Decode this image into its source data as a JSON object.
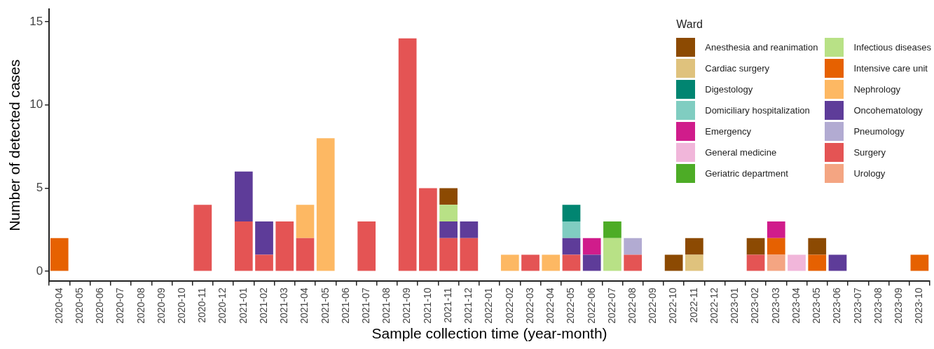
{
  "chart_data": {
    "type": "bar",
    "stacked": true,
    "xlabel": "Sample collection time (year-month)",
    "ylabel": "Number of detected cases",
    "legend_title": "Ward",
    "legend": "top right",
    "categories": [
      "2020-04",
      "2020-05",
      "2020-06",
      "2020-07",
      "2020-08",
      "2020-09",
      "2020-10",
      "2020-11",
      "2020-12",
      "2021-01",
      "2021-02",
      "2021-03",
      "2021-04",
      "2021-05",
      "2021-06",
      "2021-07",
      "2021-08",
      "2021-09",
      "2021-10",
      "2021-11",
      "2021-12",
      "2022-01",
      "2022-02",
      "2022-03",
      "2022-04",
      "2022-05",
      "2022-06",
      "2022-07",
      "2022-08",
      "2022-09",
      "2022-10",
      "2022-11",
      "2022-12",
      "2023-01",
      "2023-02",
      "2023-03",
      "2023-04",
      "2023-05",
      "2023-06",
      "2023-07",
      "2023-08",
      "2023-09",
      "2023-10"
    ],
    "ylim": [
      -0.6,
      15.75
    ],
    "yticks": [
      0,
      5,
      10,
      15
    ],
    "series": [
      {
        "name": "Urology",
        "color": "#f4a582",
        "values": [
          null,
          null,
          null,
          null,
          null,
          null,
          null,
          null,
          null,
          null,
          null,
          null,
          null,
          null,
          null,
          null,
          null,
          null,
          null,
          null,
          null,
          null,
          null,
          null,
          null,
          null,
          null,
          null,
          null,
          null,
          null,
          null,
          null,
          null,
          null,
          1,
          null,
          null,
          null,
          null,
          null,
          null,
          null
        ]
      },
      {
        "name": "Surgery",
        "color": "#e45454",
        "values": [
          null,
          null,
          null,
          null,
          null,
          null,
          null,
          4,
          null,
          3,
          1,
          3,
          2,
          null,
          null,
          3,
          null,
          14,
          5,
          2,
          2,
          null,
          null,
          1,
          null,
          1,
          null,
          null,
          1,
          null,
          null,
          null,
          null,
          null,
          1,
          null,
          null,
          null,
          null,
          null,
          null,
          null,
          null
        ]
      },
      {
        "name": "Pneumology",
        "color": "#b2abd2",
        "values": [
          null,
          null,
          null,
          null,
          null,
          null,
          null,
          null,
          null,
          null,
          null,
          null,
          null,
          null,
          null,
          null,
          null,
          null,
          null,
          null,
          null,
          null,
          null,
          null,
          null,
          null,
          null,
          null,
          1,
          null,
          null,
          null,
          null,
          null,
          null,
          null,
          null,
          null,
          null,
          null,
          null,
          null,
          null
        ]
      },
      {
        "name": "Oncohematology",
        "color": "#5e3c99",
        "values": [
          null,
          null,
          null,
          null,
          null,
          null,
          null,
          null,
          null,
          3,
          2,
          null,
          null,
          null,
          null,
          null,
          null,
          null,
          null,
          1,
          1,
          null,
          null,
          null,
          null,
          1,
          1,
          null,
          null,
          null,
          null,
          null,
          null,
          null,
          null,
          null,
          null,
          null,
          1,
          null,
          null,
          null,
          null
        ]
      },
      {
        "name": "Nephrology",
        "color": "#fdb863",
        "values": [
          null,
          null,
          null,
          null,
          null,
          null,
          null,
          null,
          null,
          null,
          null,
          null,
          2,
          8,
          null,
          null,
          null,
          null,
          null,
          null,
          null,
          null,
          1,
          null,
          1,
          null,
          null,
          null,
          null,
          null,
          null,
          null,
          null,
          null,
          null,
          null,
          null,
          null,
          null,
          null,
          null,
          null,
          null
        ]
      },
      {
        "name": "Intensive care unit",
        "color": "#e66101",
        "values": [
          2,
          null,
          null,
          null,
          null,
          null,
          null,
          null,
          null,
          null,
          null,
          null,
          null,
          null,
          null,
          null,
          null,
          null,
          null,
          null,
          null,
          null,
          null,
          null,
          null,
          null,
          null,
          null,
          null,
          null,
          null,
          null,
          null,
          null,
          null,
          1,
          null,
          1,
          null,
          null,
          null,
          null,
          1
        ]
      },
      {
        "name": "Infectious diseases",
        "color": "#b8e186",
        "values": [
          null,
          null,
          null,
          null,
          null,
          null,
          null,
          null,
          null,
          null,
          null,
          null,
          null,
          null,
          null,
          null,
          null,
          null,
          null,
          1,
          null,
          null,
          null,
          null,
          null,
          null,
          null,
          2,
          null,
          null,
          null,
          null,
          null,
          null,
          null,
          null,
          null,
          null,
          null,
          null,
          null,
          null,
          null
        ]
      },
      {
        "name": "Geriatric department",
        "color": "#4dac26",
        "values": [
          null,
          null,
          null,
          null,
          null,
          null,
          null,
          null,
          null,
          null,
          null,
          null,
          null,
          null,
          null,
          null,
          null,
          null,
          null,
          null,
          null,
          null,
          null,
          null,
          null,
          null,
          null,
          1,
          null,
          null,
          null,
          null,
          null,
          null,
          null,
          null,
          null,
          null,
          null,
          null,
          null,
          null,
          null
        ]
      },
      {
        "name": "General medicine",
        "color": "#f1b6da",
        "values": [
          null,
          null,
          null,
          null,
          null,
          null,
          null,
          null,
          null,
          null,
          null,
          null,
          null,
          null,
          null,
          null,
          null,
          null,
          null,
          null,
          null,
          null,
          null,
          null,
          null,
          null,
          null,
          null,
          null,
          null,
          null,
          null,
          null,
          null,
          null,
          null,
          1,
          null,
          null,
          null,
          null,
          null,
          null
        ]
      },
      {
        "name": "Emergency",
        "color": "#d01c8b",
        "values": [
          null,
          null,
          null,
          null,
          null,
          null,
          null,
          null,
          null,
          null,
          null,
          null,
          null,
          null,
          null,
          null,
          null,
          null,
          null,
          null,
          null,
          null,
          null,
          null,
          null,
          null,
          1,
          null,
          null,
          null,
          null,
          null,
          null,
          null,
          null,
          1,
          null,
          null,
          null,
          null,
          null,
          null,
          null
        ]
      },
      {
        "name": "Domiciliary hospitalization",
        "color": "#80cdc1",
        "values": [
          null,
          null,
          null,
          null,
          null,
          null,
          null,
          null,
          null,
          null,
          null,
          null,
          null,
          null,
          null,
          null,
          null,
          null,
          null,
          null,
          null,
          null,
          null,
          null,
          null,
          1,
          null,
          null,
          null,
          null,
          null,
          null,
          null,
          null,
          null,
          null,
          null,
          null,
          null,
          null,
          null,
          null,
          null
        ]
      },
      {
        "name": "Digestology",
        "color": "#018571",
        "values": [
          null,
          null,
          null,
          null,
          null,
          null,
          null,
          null,
          null,
          null,
          null,
          null,
          null,
          null,
          null,
          null,
          null,
          null,
          null,
          null,
          null,
          null,
          null,
          null,
          null,
          1,
          null,
          null,
          null,
          null,
          null,
          null,
          null,
          null,
          null,
          null,
          null,
          null,
          null,
          null,
          null,
          null,
          null
        ]
      },
      {
        "name": "Cardiac surgery",
        "color": "#dfc27d",
        "values": [
          null,
          null,
          null,
          null,
          null,
          null,
          null,
          null,
          null,
          null,
          null,
          null,
          null,
          null,
          null,
          null,
          null,
          null,
          null,
          null,
          null,
          null,
          null,
          null,
          null,
          null,
          null,
          null,
          null,
          null,
          null,
          1,
          null,
          null,
          null,
          null,
          null,
          null,
          null,
          null,
          null,
          null,
          null
        ]
      },
      {
        "name": "Anesthesia and reanimation",
        "color": "#8c4a02",
        "values": [
          null,
          null,
          null,
          null,
          null,
          null,
          null,
          null,
          null,
          null,
          null,
          null,
          null,
          null,
          null,
          null,
          null,
          null,
          null,
          1,
          null,
          null,
          null,
          null,
          null,
          null,
          null,
          null,
          null,
          null,
          1,
          1,
          null,
          null,
          1,
          null,
          null,
          1,
          null,
          null,
          null,
          null,
          null
        ]
      }
    ]
  }
}
